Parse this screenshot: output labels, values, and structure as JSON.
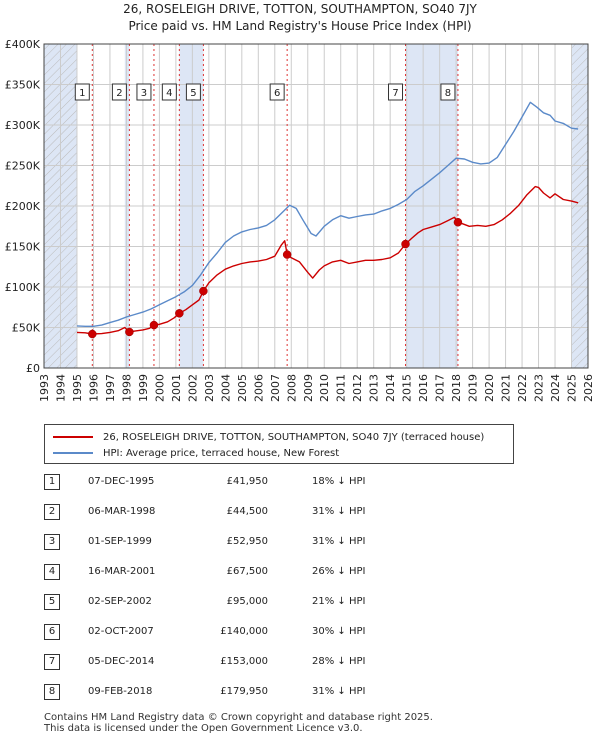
{
  "title_line1": "26, ROSELEIGH DRIVE, TOTTON, SOUTHAMPTON, SO40 7JY",
  "title_line2": "Price paid vs. HM Land Registry's House Price Index (HPI)",
  "legend": {
    "property_label": "26, ROSELEIGH DRIVE, TOTTON, SOUTHAMPTON, SO40 7JY (terraced house)",
    "hpi_label": "HPI: Average price, terraced house, New Forest"
  },
  "colors": {
    "property": "#cc0000",
    "hpi": "#5b8ac9",
    "shade": "#dde6f5",
    "grid": "#cccccc"
  },
  "chart_data": {
    "type": "line",
    "xlim": [
      1993,
      2026
    ],
    "ylim": [
      0,
      400000
    ],
    "y_ticks": [
      {
        "value": 0,
        "label": "£0"
      },
      {
        "value": 50000,
        "label": "£50K"
      },
      {
        "value": 100000,
        "label": "£100K"
      },
      {
        "value": 150000,
        "label": "£150K"
      },
      {
        "value": 200000,
        "label": "£200K"
      },
      {
        "value": 250000,
        "label": "£250K"
      },
      {
        "value": 300000,
        "label": "£300K"
      },
      {
        "value": 350000,
        "label": "£350K"
      },
      {
        "value": 400000,
        "label": "£400K"
      }
    ],
    "x_ticks": [
      "1993",
      "1994",
      "1995",
      "1996",
      "1997",
      "1998",
      "1999",
      "2000",
      "2001",
      "2002",
      "2003",
      "2004",
      "2005",
      "2006",
      "2007",
      "2008",
      "2009",
      "2010",
      "2011",
      "2012",
      "2013",
      "2014",
      "2015",
      "2016",
      "2017",
      "2018",
      "2019",
      "2020",
      "2021",
      "2022",
      "2023",
      "2024",
      "2025",
      "2026"
    ],
    "series": [
      {
        "name": "26, ROSELEIGH DRIVE, TOTTON, SOUTHAMPTON, SO40 7JY (terraced house)",
        "x": [
          1995.0,
          1995.5,
          1995.93,
          1996.5,
          1997.0,
          1997.5,
          1997.9,
          1998.18,
          1998.5,
          1999.0,
          1999.4,
          1999.67,
          2000.0,
          2000.5,
          2000.9,
          2001.21,
          2001.6,
          2002.0,
          2002.4,
          2002.67,
          2003.0,
          2003.5,
          2004.0,
          2004.5,
          2005.0,
          2005.5,
          2006.0,
          2006.5,
          2007.0,
          2007.4,
          2007.6,
          2007.75,
          2008.0,
          2008.5,
          2009.0,
          2009.3,
          2009.7,
          2010.0,
          2010.5,
          2011.0,
          2011.5,
          2012.0,
          2012.5,
          2013.0,
          2013.5,
          2014.0,
          2014.5,
          2014.93,
          2015.3,
          2015.7,
          2016.0,
          2016.5,
          2017.0,
          2017.5,
          2017.9,
          2018.11,
          2018.4,
          2018.8,
          2019.3,
          2019.8,
          2020.3,
          2020.8,
          2021.3,
          2021.8,
          2022.3,
          2022.8,
          2023.0,
          2023.3,
          2023.7,
          2024.0,
          2024.5,
          2025.0,
          2025.4
        ],
        "values": [
          44000,
          43500,
          41950,
          42500,
          44000,
          46000,
          50000,
          44500,
          45500,
          47000,
          49000,
          52950,
          54000,
          57000,
          62000,
          67500,
          72000,
          78000,
          84000,
          95000,
          105000,
          115000,
          122000,
          126000,
          129000,
          131000,
          132000,
          134000,
          138000,
          152000,
          157000,
          140000,
          136000,
          131000,
          118000,
          111000,
          121000,
          126000,
          131000,
          133000,
          129000,
          131000,
          133000,
          133000,
          134000,
          136000,
          142000,
          153000,
          160000,
          167000,
          171000,
          174000,
          177000,
          182000,
          186000,
          179950,
          178000,
          175000,
          176000,
          175000,
          177000,
          183000,
          191000,
          201000,
          214000,
          224000,
          223000,
          216000,
          210000,
          215000,
          208000,
          206000,
          204000
        ]
      },
      {
        "name": "HPI: Average price, terraced house, New Forest",
        "x": [
          1995.0,
          1995.5,
          1996.0,
          1996.5,
          1997.0,
          1997.5,
          1998.0,
          1998.5,
          1999.0,
          1999.5,
          2000.0,
          2000.5,
          2001.0,
          2001.5,
          2002.0,
          2002.5,
          2003.0,
          2003.5,
          2004.0,
          2004.5,
          2005.0,
          2005.5,
          2006.0,
          2006.5,
          2007.0,
          2007.5,
          2007.9,
          2008.3,
          2008.7,
          2009.2,
          2009.5,
          2010.0,
          2010.5,
          2011.0,
          2011.5,
          2012.0,
          2012.5,
          2013.0,
          2013.5,
          2014.0,
          2014.5,
          2015.0,
          2015.5,
          2016.0,
          2016.5,
          2017.0,
          2017.5,
          2018.0,
          2018.5,
          2019.0,
          2019.5,
          2020.0,
          2020.5,
          2021.0,
          2021.5,
          2022.0,
          2022.5,
          2022.9,
          2023.3,
          2023.7,
          2024.0,
          2024.5,
          2025.0,
          2025.4
        ],
        "values": [
          52000,
          51500,
          51500,
          53000,
          56000,
          59000,
          63000,
          66000,
          69000,
          73000,
          78000,
          83000,
          88000,
          94000,
          102000,
          115000,
          130000,
          142000,
          155000,
          163000,
          168000,
          171000,
          173000,
          176000,
          183000,
          193000,
          201000,
          197000,
          183000,
          166000,
          163000,
          175000,
          183000,
          188000,
          185000,
          187000,
          189000,
          190000,
          194000,
          197000,
          202000,
          208000,
          218000,
          225000,
          233000,
          241000,
          250000,
          259000,
          258000,
          254000,
          252000,
          253000,
          260000,
          276000,
          292000,
          310000,
          328000,
          322000,
          315000,
          312000,
          305000,
          302000,
          296000,
          295000
        ]
      }
    ],
    "sales": [
      {
        "num": "1",
        "date": "07-DEC-1995",
        "x": 1995.93,
        "price": 41950,
        "price_label": "£41,950",
        "hpi_label": "18% ↓ HPI"
      },
      {
        "num": "2",
        "date": "06-MAR-1998",
        "x": 1998.18,
        "price": 44500,
        "price_label": "£44,500",
        "hpi_label": "31% ↓ HPI"
      },
      {
        "num": "3",
        "date": "01-SEP-1999",
        "x": 1999.67,
        "price": 52950,
        "price_label": "£52,950",
        "hpi_label": "31% ↓ HPI"
      },
      {
        "num": "4",
        "date": "16-MAR-2001",
        "x": 2001.21,
        "price": 67500,
        "price_label": "£67,500",
        "hpi_label": "26% ↓ HPI"
      },
      {
        "num": "5",
        "date": "02-SEP-2002",
        "x": 2002.67,
        "price": 95000,
        "price_label": "£95,000",
        "hpi_label": "21% ↓ HPI"
      },
      {
        "num": "6",
        "date": "02-OCT-2007",
        "x": 2007.75,
        "price": 140000,
        "price_label": "£140,000",
        "hpi_label": "30% ↓ HPI"
      },
      {
        "num": "7",
        "date": "05-DEC-2014",
        "x": 2014.93,
        "price": 153000,
        "price_label": "£153,000",
        "hpi_label": "28% ↓ HPI"
      },
      {
        "num": "8",
        "date": "09-FEB-2018",
        "x": 2018.11,
        "price": 179950,
        "price_label": "£179,950",
        "hpi_label": "31% ↓ HPI"
      }
    ],
    "shaded_ranges": [
      [
        1993,
        1995.0
      ],
      [
        1997.9,
        1998.18
      ],
      [
        2001.21,
        2002.67
      ],
      [
        2007.75,
        2007.75
      ],
      [
        2014.93,
        2018.11
      ],
      [
        2025.0,
        2026
      ]
    ],
    "hatched_ranges": [
      [
        1993,
        1995.0
      ],
      [
        2025.0,
        2026
      ]
    ]
  },
  "footer_line1": "Contains HM Land Registry data © Crown copyright and database right 2025.",
  "footer_line2": "This data is licensed under the Open Government Licence v3.0."
}
